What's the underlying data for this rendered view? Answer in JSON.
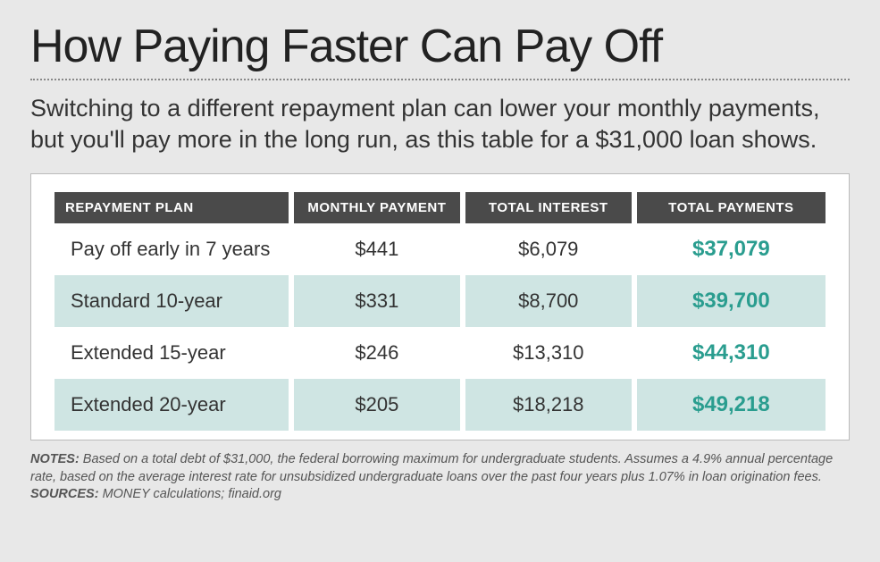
{
  "title": "How Paying Faster Can Pay Off",
  "subtitle": "Switching to a different repayment plan can lower your monthly payments, but you'll pay more in the long run, as this table for a $31,000 loan shows.",
  "table": {
    "type": "table",
    "background_color": "#ffffff",
    "card_border_color": "#bbbbbb",
    "header_bg": "#4a4a4a",
    "header_fg": "#ffffff",
    "row_alt_bg": "#cfe5e3",
    "row_plain_bg": "#ffffff",
    "total_color": "#2a9d8f",
    "columns": [
      {
        "label": "REPAYMENT PLAN",
        "align": "left"
      },
      {
        "label": "MONTHLY PAYMENT",
        "align": "center"
      },
      {
        "label": "TOTAL INTEREST",
        "align": "center"
      },
      {
        "label": "TOTAL PAYMENTS",
        "align": "center"
      }
    ],
    "rows": [
      {
        "plan": "Pay off early in 7 years",
        "monthly": "$441",
        "interest": "$6,079",
        "total": "$37,079",
        "alt": false
      },
      {
        "plan": "Standard 10-year",
        "monthly": "$331",
        "interest": "$8,700",
        "total": "$39,700",
        "alt": true
      },
      {
        "plan": "Extended 15-year",
        "monthly": "$246",
        "interest": "$13,310",
        "total": "$44,310",
        "alt": false
      },
      {
        "plan": "Extended 20-year",
        "monthly": "$205",
        "interest": "$18,218",
        "total": "$49,218",
        "alt": true
      }
    ]
  },
  "notes_label": "NOTES:",
  "notes_body": " Based on a total debt of $31,000, the federal borrowing maximum for undergraduate students. Assumes a 4.9% annual percentage rate, based on the average interest rate for unsubsidized undergraduate loans over the past four years plus 1.07% in loan origination fees. ",
  "sources_label": "SOURCES:",
  "sources_body": " MONEY calculations; finaid.org",
  "page_bg": "#e8e8e8",
  "fonts": {
    "title_size_pt": 52,
    "subtitle_size_pt": 27,
    "header_size_pt": 15,
    "cell_size_pt": 22,
    "total_size_pt": 24,
    "notes_size_pt": 14.5
  }
}
